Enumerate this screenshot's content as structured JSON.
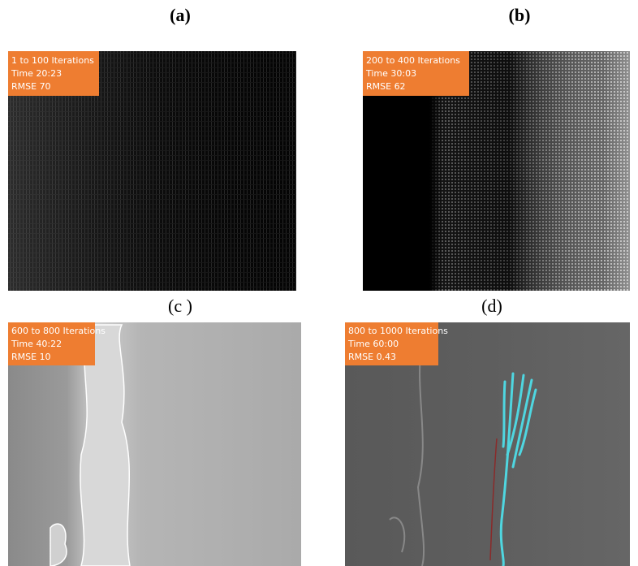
{
  "panels": [
    {
      "label": "(a)",
      "overlay": [
        "1 to 100 Iterations",
        "Time 20:23",
        "RMSE  70"
      ]
    },
    {
      "label": "(b)",
      "overlay": [
        "200 to 400 Iterations",
        "Time 30:03",
        "RMSE  62"
      ]
    },
    {
      "label": "(c )",
      "overlay": [
        "600 to 800 Iterations",
        "Time 40:22",
        "RMSE  10"
      ]
    },
    {
      "label": "(d)",
      "overlay": [
        "800 to 1000 Iterations",
        "Time 60:00",
        "RMSE  0.43"
      ]
    }
  ]
}
